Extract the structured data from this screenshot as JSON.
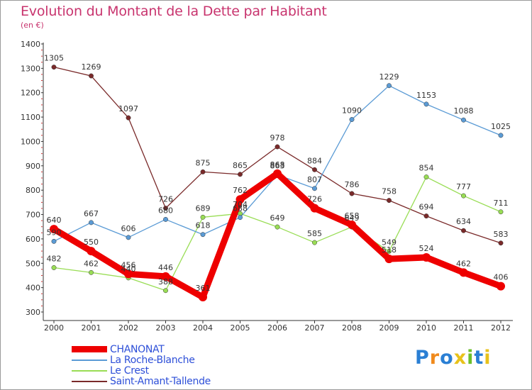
{
  "header": {
    "title": "Evolution du Montant de la Dette par Habitant",
    "subtitle": "(en €)"
  },
  "logo": {
    "text": "Proxiti"
  },
  "colors": {
    "CHANONAT": "#ee0000",
    "La Roche-Blanche": "#5b9bd5",
    "Le Crest": "#99dd55",
    "Saint-Amant-Tallende": "#7a2a2a",
    "axis": "#333333"
  },
  "chart_data": {
    "type": "line",
    "title": "Evolution du Montant de la Dette par Habitant",
    "subtitle": "(en €)",
    "x": [
      2000,
      2001,
      2002,
      2003,
      2004,
      2005,
      2006,
      2007,
      2008,
      2009,
      2010,
      2011,
      2012
    ],
    "ylim": [
      300,
      1400
    ],
    "yticks": [
      300,
      400,
      500,
      600,
      700,
      800,
      900,
      1000,
      1100,
      1200,
      1300,
      1400
    ],
    "grid": false,
    "legend": "bottom-left",
    "series": [
      {
        "name": "CHANONAT",
        "values": [
          640,
          550,
          456,
          446,
          361,
          762,
          868,
          726,
          658,
          518,
          524,
          462,
          406
        ]
      },
      {
        "name": "La Roche-Blanche",
        "values": [
          590,
          667,
          606,
          680,
          618,
          688,
          863,
          807,
          1090,
          1229,
          1153,
          1088,
          1025
        ]
      },
      {
        "name": "Le Crest",
        "values": [
          482,
          462,
          440,
          388,
          689,
          704,
          649,
          585,
          649,
          549,
          854,
          777,
          711
        ]
      },
      {
        "name": "Saint-Amant-Tallende",
        "values": [
          1305,
          1269,
          1097,
          726,
          875,
          865,
          978,
          884,
          786,
          758,
          694,
          634,
          583
        ]
      }
    ]
  }
}
